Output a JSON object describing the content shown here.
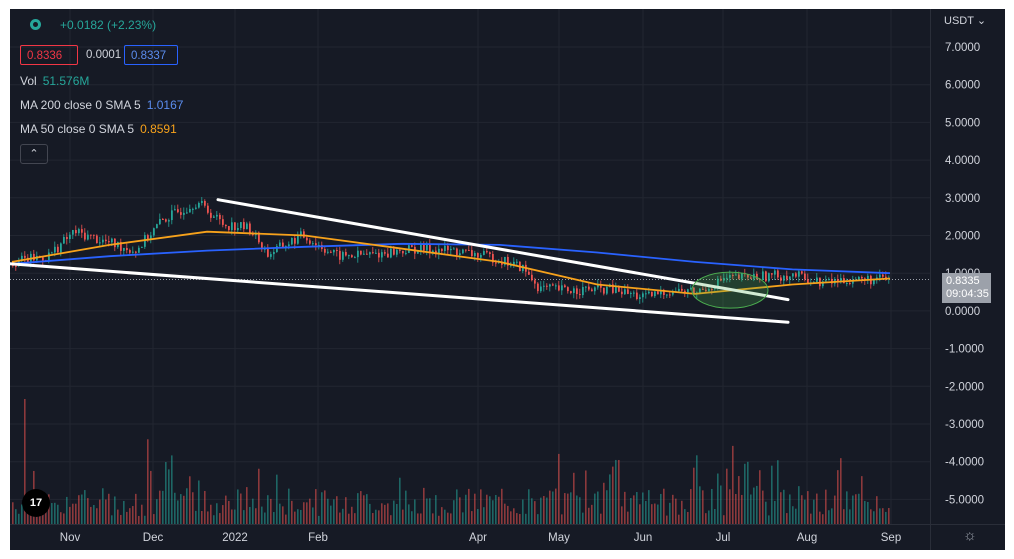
{
  "header": {
    "change": "+0.0182 (+2.23%)",
    "bid": "0.8336",
    "spread": "0.0001",
    "ask": "0.8337"
  },
  "indicators": {
    "vol_label": "Vol",
    "vol_value": "51.576M",
    "ma200_label": "MA 200 close 0 SMA 5",
    "ma200_value": "1.0167",
    "ma50_label": "MA 50 close 0 SMA 5",
    "ma50_value": "0.8591"
  },
  "collapse_icon": "chevron-up",
  "price_axis": {
    "currency": "USDT",
    "ticks": [
      "7.0000",
      "6.0000",
      "5.0000",
      "4.0000",
      "3.0000",
      "2.0000",
      "1.0000",
      "0.0000",
      "-1.0000",
      "-2.0000",
      "-3.0000",
      "-4.0000",
      "-5.0000"
    ],
    "current_price": "0.8335",
    "countdown": "09:04:35"
  },
  "time_axis": [
    "Nov",
    "Dec",
    "2022",
    "Feb",
    "Apr",
    "May",
    "Jun",
    "Jul",
    "Aug",
    "Sep"
  ],
  "logo_text": "17",
  "colors": {
    "background": "#161a25",
    "up": "#26a69a",
    "down": "#ef5350",
    "ma200": "#2962ff",
    "ma50": "#f7a21b",
    "bid_box": "#f23645",
    "ask_box": "#2962ff",
    "trendline": "#ffffff",
    "highlight": "#4caf50"
  },
  "chart_data": {
    "type": "line",
    "title": "",
    "x_labels": [
      "Nov",
      "Dec",
      "2022",
      "Feb",
      "Apr",
      "May",
      "Jun",
      "Jul",
      "Aug",
      "Sep"
    ],
    "ylim": [
      -5.5,
      7.5
    ],
    "series": [
      {
        "name": "MA 200 close 0 SMA 5",
        "values": [
          1.25,
          1.45,
          1.6,
          1.7,
          1.78,
          1.75,
          1.55,
          1.3,
          1.1,
          1.0
        ]
      },
      {
        "name": "MA 50 close 0 SMA 5",
        "values": [
          1.3,
          1.75,
          2.1,
          2.0,
          1.65,
          1.3,
          0.7,
          0.45,
          0.7,
          0.86
        ]
      }
    ],
    "price_path": [
      [
        0,
        1.3
      ],
      [
        0.04,
        1.45
      ],
      [
        0.07,
        2.1
      ],
      [
        0.11,
        1.8
      ],
      [
        0.14,
        1.6
      ],
      [
        0.17,
        2.4
      ],
      [
        0.21,
        2.9
      ],
      [
        0.24,
        2.3
      ],
      [
        0.27,
        2.2
      ],
      [
        0.29,
        1.5
      ],
      [
        0.33,
        2.0
      ],
      [
        0.37,
        1.45
      ],
      [
        0.41,
        1.5
      ],
      [
        0.46,
        1.65
      ],
      [
        0.5,
        1.6
      ],
      [
        0.55,
        1.4
      ],
      [
        0.58,
        1.15
      ],
      [
        0.6,
        0.6
      ],
      [
        0.63,
        0.55
      ],
      [
        0.68,
        0.58
      ],
      [
        0.72,
        0.35
      ],
      [
        0.75,
        0.55
      ],
      [
        0.78,
        0.5
      ],
      [
        0.81,
        0.85
      ],
      [
        0.85,
        0.92
      ],
      [
        0.89,
        0.95
      ],
      [
        0.92,
        0.75
      ],
      [
        0.95,
        0.83
      ]
    ]
  }
}
